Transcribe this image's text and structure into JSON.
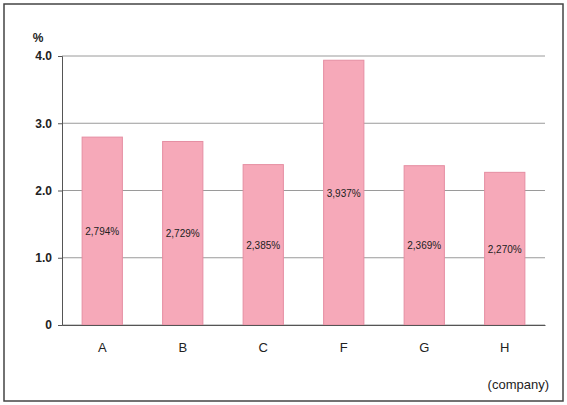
{
  "chart_data": {
    "type": "bar",
    "y_label": "%",
    "x_label": "(company)",
    "categories": [
      "A",
      "B",
      "C",
      "F",
      "G",
      "H"
    ],
    "values": [
      2.794,
      2.729,
      2.385,
      3.937,
      2.369,
      2.27
    ],
    "value_labels": [
      "2,794%",
      "2,729%",
      "2,385%",
      "3,937%",
      "2,369%",
      "2,270%"
    ],
    "data_labels": true,
    "color": "#f6a9b9",
    "ylim": [
      0,
      4
    ],
    "yticks": [
      0,
      {
        "value": 1,
        "label": "1.0"
      },
      {
        "value": 2,
        "label": "2.0"
      },
      {
        "value": 3,
        "label": "3.0"
      },
      {
        "value": 4,
        "label": "4.0"
      }
    ],
    "grid": true
  }
}
